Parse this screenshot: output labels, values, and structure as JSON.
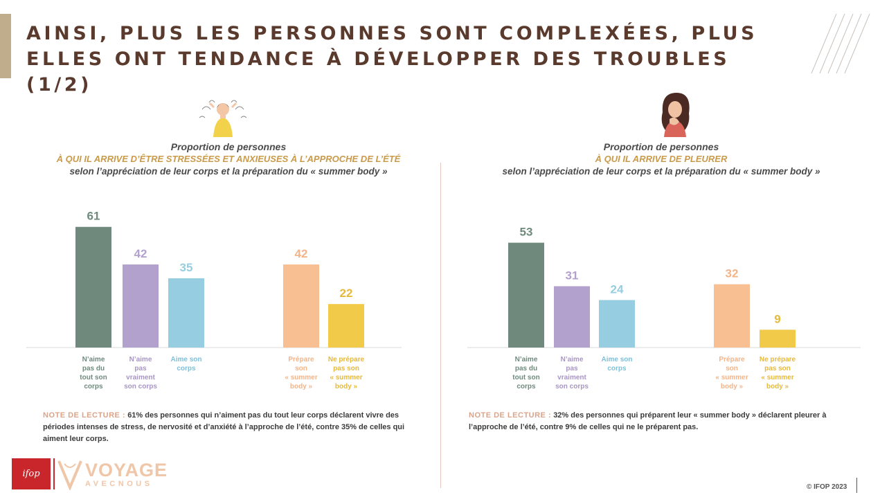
{
  "header": {
    "title": "AINSI, PLUS LES PERSONNES SONT COMPLEXÉES, PLUS ELLES ONT TENDANCE À DÉVELOPPER DES TROUBLES (1/2)"
  },
  "colors": {
    "accent": "#bfad8c",
    "title": "#5a3a2c",
    "subtitle_highlight": "#c89a4a",
    "note_key": "#d9a48a",
    "bar_green": "#6f8a7d",
    "bar_purple": "#b3a1cd",
    "bar_blue": "#97cde0",
    "bar_peach": "#f8bf93",
    "bar_yellow": "#f2ca4a"
  },
  "chart_data": [
    {
      "type": "bar",
      "subtitle_line1": "Proportion de personnes",
      "subtitle_line2": "À QUI IL ARRIVE D’ÊTRE STRESSÉES ET ANXIEUSES À L’APPROCHE DE L’ÉTÉ",
      "subtitle_line3": "selon l’appréciation de leur corps et la préparation du « summer body »",
      "ylim": [
        0,
        70
      ],
      "categories": [
        "N’aime pas du tout son corps",
        "N’aime pas vraiment son corps",
        "Aime son corps",
        "Prépare son « summer body »",
        "Ne prépare pas son « summer body »"
      ],
      "category_lines": [
        [
          "N’aime",
          "pas du",
          "tout son",
          "corps"
        ],
        [
          "N’aime",
          "pas",
          "vraiment",
          "son corps"
        ],
        [
          "Aime son",
          "corps"
        ],
        [
          "Prépare",
          "son",
          "« summer",
          "body »"
        ],
        [
          "Ne prépare",
          "pas son",
          "« summer",
          "body »"
        ]
      ],
      "values": [
        61,
        42,
        35,
        42,
        22
      ],
      "bar_colors": [
        "#6f8a7d",
        "#b3a1cd",
        "#97cde0",
        "#f8bf93",
        "#f2ca4a"
      ],
      "value_colors": [
        "#6f8a7d",
        "#b3a1cd",
        "#97cde0",
        "#f4b488",
        "#e6b93a"
      ],
      "label_colors": [
        "#6f8a7d",
        "#a795c4",
        "#7fc0d8",
        "#f4b488",
        "#e6b93a"
      ],
      "groups": [
        [
          0,
          1,
          2
        ],
        [
          3,
          4
        ]
      ],
      "note_key": "NOTE DE LECTURE :",
      "note_text": "61% des personnes qui n’aiment pas du tout leur corps déclarent vivre des périodes intenses de stress, de nervosité et d’anxiété à l’approche de l’été, contre 35% de celles qui aiment leur corps."
    },
    {
      "type": "bar",
      "subtitle_line1": "Proportion de personnes",
      "subtitle_line2": "À QUI IL ARRIVE DE PLEURER",
      "subtitle_line3": "selon l’appréciation de leur corps et la préparation du « summer body »",
      "ylim": [
        0,
        70
      ],
      "categories": [
        "N’aime pas du tout son corps",
        "N’aime pas vraiment son corps",
        "Aime son corps",
        "Prépare son « summer body »",
        "Ne prépare pas son « summer body »"
      ],
      "category_lines": [
        [
          "N’aime",
          "pas du",
          "tout son",
          "corps"
        ],
        [
          "N’aime",
          "pas",
          "vraiment",
          "son corps"
        ],
        [
          "Aime son",
          "corps"
        ],
        [
          "Prépare",
          "son",
          "« summer",
          "body »"
        ],
        [
          "Ne prépare",
          "pas son",
          "« summer",
          "body »"
        ]
      ],
      "values": [
        53,
        31,
        24,
        32,
        9
      ],
      "bar_colors": [
        "#6f8a7d",
        "#b3a1cd",
        "#97cde0",
        "#f8bf93",
        "#f2ca4a"
      ],
      "value_colors": [
        "#6f8a7d",
        "#b3a1cd",
        "#97cde0",
        "#f4b488",
        "#e6b93a"
      ],
      "label_colors": [
        "#6f8a7d",
        "#a795c4",
        "#7fc0d8",
        "#f4b488",
        "#e6b93a"
      ],
      "groups": [
        [
          0,
          1,
          2
        ],
        [
          3,
          4
        ]
      ],
      "note_key": "NOTE DE LECTURE :",
      "note_text": "32% des personnes qui préparent leur « summer body » déclarent pleurer à l’approche de l’été, contre 9% de celles qui ne le préparent pas."
    }
  ],
  "footer": {
    "ifop_logo_text": "ifop",
    "brand_word": "VOYAGE",
    "brand_sub": "AVECNOUS",
    "copyright": "© IFOP 2023"
  }
}
